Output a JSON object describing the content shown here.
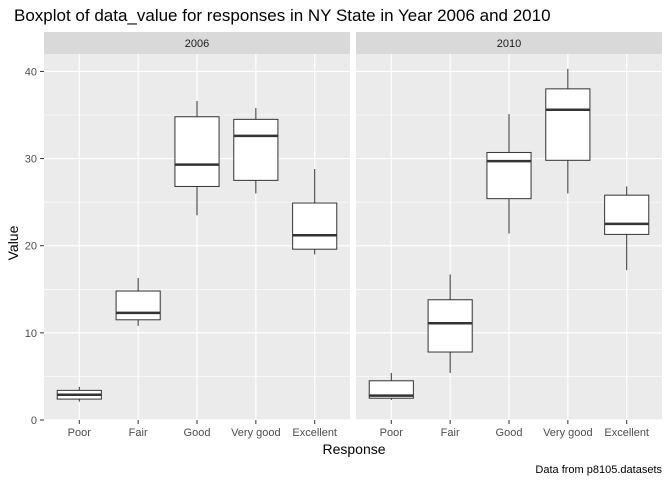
{
  "chart_data": {
    "type": "boxplot",
    "title": "Boxplot of data_value for responses in NY State in Year 2006 and 2010",
    "xlabel": "Response",
    "ylabel": "Value",
    "caption": "Data from p8105.datasets",
    "categories": [
      "Poor",
      "Fair",
      "Good",
      "Very good",
      "Excellent"
    ],
    "yticks": [
      0,
      10,
      20,
      30,
      40
    ],
    "ylim": [
      0,
      42
    ],
    "grid": true,
    "colors": {
      "panel": "#ebebeb",
      "strip": "#d9d9d9",
      "grid": "#ffffff",
      "box_fill": "#ffffff",
      "box_line": "#333333"
    },
    "facets": [
      {
        "label": "2006",
        "boxes": [
          {
            "category": "Poor",
            "whisker_low": 2.1,
            "q1": 2.4,
            "median": 2.9,
            "q3": 3.4,
            "whisker_high": 3.8
          },
          {
            "category": "Fair",
            "whisker_low": 10.8,
            "q1": 11.5,
            "median": 12.3,
            "q3": 14.8,
            "whisker_high": 16.3
          },
          {
            "category": "Good",
            "whisker_low": 23.5,
            "q1": 26.8,
            "median": 29.3,
            "q3": 34.8,
            "whisker_high": 36.6
          },
          {
            "category": "Very good",
            "whisker_low": 26.0,
            "q1": 27.5,
            "median": 32.6,
            "q3": 34.5,
            "whisker_high": 35.8
          },
          {
            "category": "Excellent",
            "whisker_low": 19.0,
            "q1": 19.6,
            "median": 21.2,
            "q3": 24.9,
            "whisker_high": 28.8
          }
        ]
      },
      {
        "label": "2010",
        "boxes": [
          {
            "category": "Poor",
            "whisker_low": 2.3,
            "q1": 2.5,
            "median": 2.8,
            "q3": 4.5,
            "whisker_high": 5.4
          },
          {
            "category": "Fair",
            "whisker_low": 5.4,
            "q1": 7.8,
            "median": 11.1,
            "q3": 13.8,
            "whisker_high": 16.7
          },
          {
            "category": "Good",
            "whisker_low": 21.4,
            "q1": 25.4,
            "median": 29.7,
            "q3": 30.7,
            "whisker_high": 35.1
          },
          {
            "category": "Very good",
            "whisker_low": 26.0,
            "q1": 29.8,
            "median": 35.6,
            "q3": 38.0,
            "whisker_high": 40.3
          },
          {
            "category": "Excellent",
            "whisker_low": 17.2,
            "q1": 21.3,
            "median": 22.5,
            "q3": 25.8,
            "whisker_high": 26.8
          }
        ]
      }
    ]
  }
}
